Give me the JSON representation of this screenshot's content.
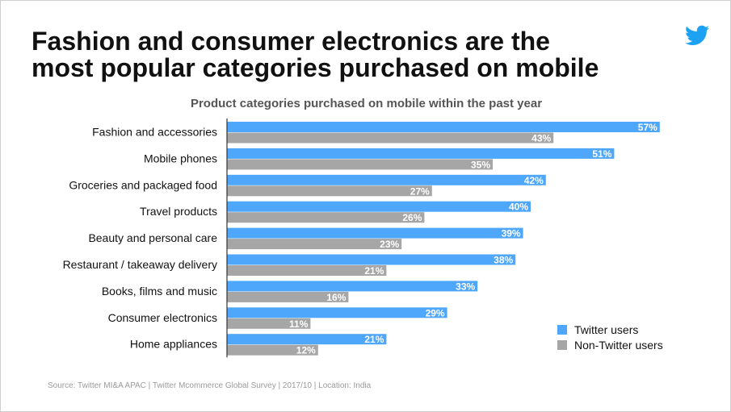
{
  "title_line1": "Fashion and consumer electronics are the",
  "title_line2": "most popular categories purchased on mobile",
  "logo": "twitter-bird-icon",
  "source": "Source:  Twitter MI&A APAC | Twitter Mcommerce Global Survey |  2017/10 | Location: India",
  "colors": {
    "twitter": "#4ea7fb",
    "non_twitter": "#a6a6a6"
  },
  "chart_data": {
    "type": "bar",
    "orientation": "horizontal",
    "title": "Product categories purchased on mobile within the past year",
    "categories": [
      "Fashion and accessories",
      "Mobile phones",
      "Groceries and packaged food",
      "Travel products",
      "Beauty and personal care",
      "Restaurant / takeaway delivery",
      "Books, films and music",
      "Consumer electronics",
      "Home appliances"
    ],
    "series": [
      {
        "name": "Twitter users",
        "color": "#4ea7fb",
        "values": [
          57,
          51,
          42,
          40,
          39,
          38,
          33,
          29,
          21
        ],
        "labels": [
          "57%",
          "51%",
          "42%",
          "40%",
          "39%",
          "38%",
          "33%",
          "29%",
          "21%"
        ]
      },
      {
        "name": "Non-Twitter users",
        "color": "#a6a6a6",
        "values": [
          43,
          35,
          27,
          26,
          23,
          21,
          16,
          11,
          12
        ],
        "labels": [
          "43%",
          "35%",
          "27%",
          "26%",
          "23%",
          "21%",
          "16%",
          "11%",
          "12%"
        ]
      }
    ],
    "unit": "%",
    "legend_position": "bottom-right",
    "grid": false
  }
}
